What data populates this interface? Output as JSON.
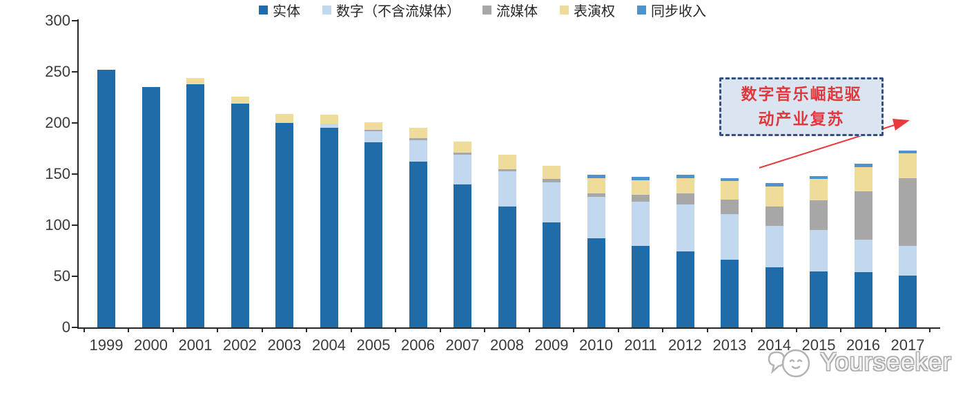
{
  "chart_data": {
    "type": "bar",
    "stacked": true,
    "title": "",
    "xlabel": "",
    "ylabel": "",
    "categories": [
      "1999",
      "2000",
      "2001",
      "2002",
      "2003",
      "2004",
      "2005",
      "2006",
      "2007",
      "2008",
      "2009",
      "2010",
      "2011",
      "2012",
      "2013",
      "2014",
      "2015",
      "2016",
      "2017"
    ],
    "series": [
      {
        "name": "实体",
        "color": "#1F6CA8",
        "values": [
          252,
          235,
          238,
          219,
          200,
          195,
          181,
          162,
          140,
          118,
          103,
          87,
          80,
          74,
          66,
          59,
          55,
          54,
          51
        ]
      },
      {
        "name": "数字（不含流媒体）",
        "color": "#C1D8EE",
        "values": [
          0,
          0,
          0,
          0,
          0,
          4,
          11,
          21,
          29,
          35,
          39,
          41,
          43,
          46,
          45,
          40,
          40,
          32,
          29
        ]
      },
      {
        "name": "流媒体",
        "color": "#A7A7A7",
        "values": [
          0,
          0,
          0,
          0,
          0,
          0,
          1,
          2,
          2,
          2,
          3,
          3,
          7,
          11,
          14,
          19,
          29,
          47,
          66
        ]
      },
      {
        "name": "表演权",
        "color": "#EFDC9B",
        "values": [
          0,
          0,
          6,
          7,
          9,
          9,
          8,
          10,
          11,
          14,
          13,
          15,
          14,
          15,
          18,
          20,
          21,
          24,
          24
        ]
      },
      {
        "name": "同步收入",
        "color": "#4F93CE",
        "values": [
          0,
          0,
          0,
          0,
          0,
          0,
          0,
          0,
          0,
          0,
          0,
          3,
          3,
          3,
          3,
          3,
          3,
          3,
          3
        ]
      }
    ],
    "ylim": [
      0,
      300
    ],
    "yticks": [
      0,
      50,
      100,
      150,
      200,
      250,
      300
    ],
    "grid": false,
    "legend_position": "bottom",
    "axis_color": "#262626",
    "tick_label_color": "#3b3b3b"
  },
  "annotation": {
    "line1": "数字音乐崛起驱",
    "line2": "动产业复苏",
    "text_color": "#E0383C",
    "bg_color": "#DBE5F1",
    "border_color": "#35507E",
    "arrow_color": "#E8393D"
  },
  "watermark": {
    "label": "Yourseeker",
    "color": "#ABABAB"
  }
}
